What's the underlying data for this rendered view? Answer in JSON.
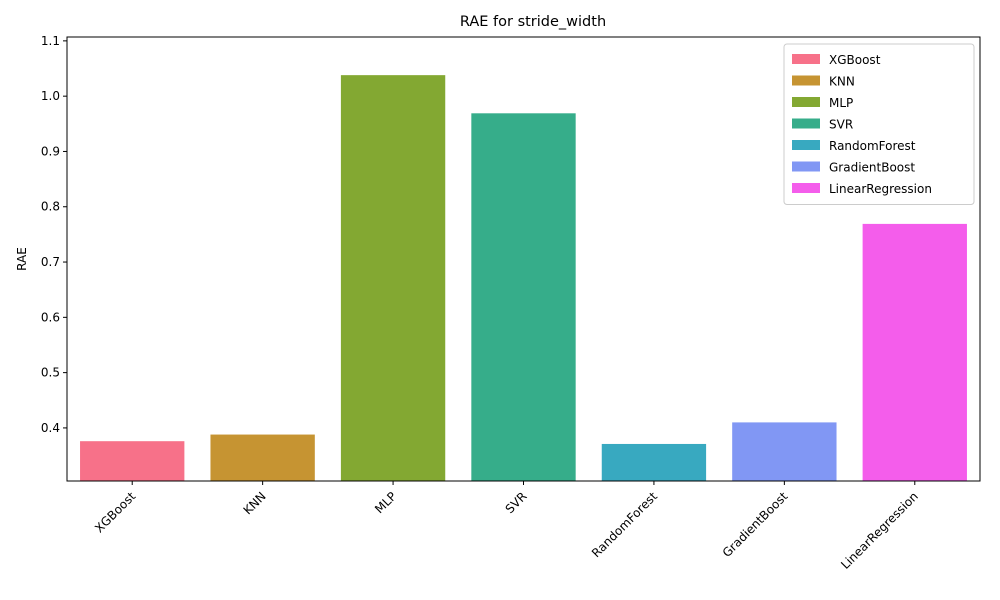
{
  "chart_data": {
    "type": "bar",
    "title": "RAE for stride_width",
    "xlabel": "",
    "ylabel": "RAE",
    "categories": [
      "XGBoost",
      "KNN",
      "MLP",
      "SVR",
      "RandomForest",
      "GradientBoost",
      "LinearRegression"
    ],
    "values": [
      0.376,
      0.388,
      1.038,
      0.969,
      0.371,
      0.41,
      0.769
    ],
    "colors": [
      "#f77189",
      "#c69432",
      "#83a832",
      "#36ad8a",
      "#38a9c0",
      "#8197f4",
      "#f45deb"
    ],
    "ylim": [
      0.304,
      1.107
    ],
    "yticks": [
      0.4,
      0.5,
      0.6,
      0.7,
      0.8,
      0.9,
      1.0,
      1.1
    ],
    "ytick_labels": [
      "0.4",
      "0.5",
      "0.6",
      "0.7",
      "0.8",
      "0.9",
      "1.0",
      "1.1"
    ],
    "legend": {
      "placement": "top-right",
      "entries": [
        "XGBoost",
        "KNN",
        "MLP",
        "SVR",
        "RandomForest",
        "GradientBoost",
        "LinearRegression"
      ]
    },
    "grid": false
  }
}
